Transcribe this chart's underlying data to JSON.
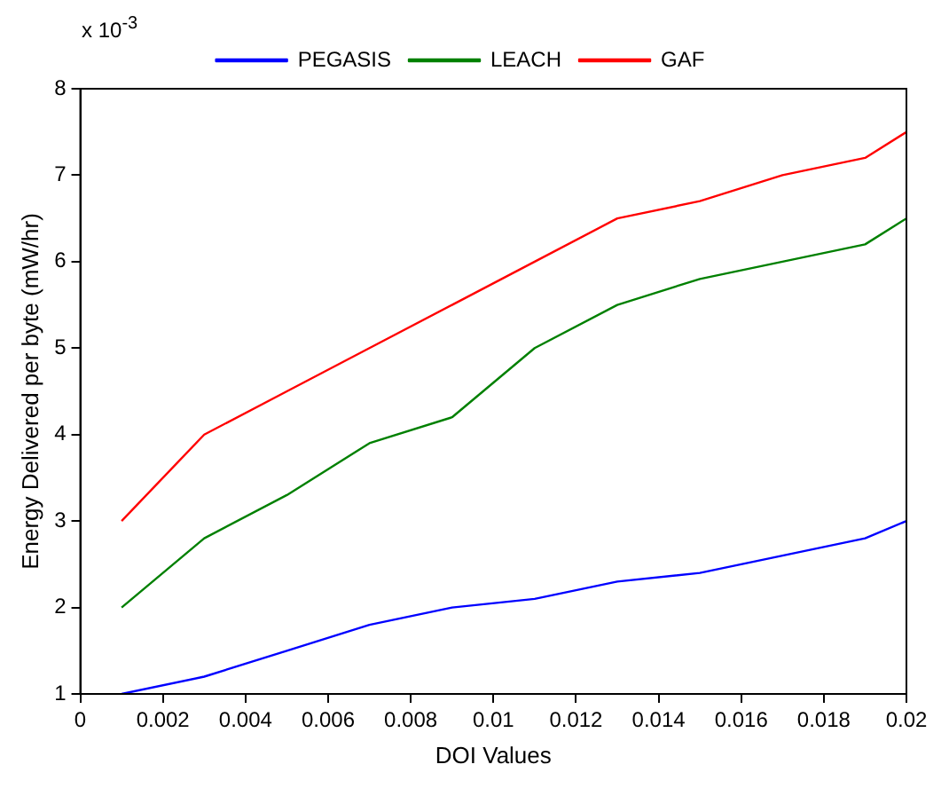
{
  "chart_data": {
    "type": "line",
    "xlabel": "DOI Values",
    "ylabel": "Energy Delivered per byte (mW/hr)",
    "annotations": [
      "x 10$^{-3}$"
    ],
    "x": [
      0.001,
      0.003,
      0.005,
      0.007,
      0.009,
      0.011,
      0.013,
      0.015,
      0.017,
      0.019,
      0.02
    ],
    "series": [
      {
        "name": "PEGASIS",
        "color": "#0000ff",
        "values": [
          1,
          1.2,
          1.5,
          1.8,
          2,
          2.1,
          2.3,
          2.4,
          2.6,
          2.8,
          3
        ]
      },
      {
        "name": "LEACH",
        "color": "#008000",
        "values": [
          2,
          2.8,
          3.3,
          3.9,
          4.2,
          5,
          5.5,
          5.8,
          6,
          6.2,
          6.5
        ]
      },
      {
        "name": "GAF",
        "color": "#ff0000",
        "values": [
          3,
          4,
          4.5,
          5,
          5.5,
          6,
          6.5,
          6.7,
          7,
          7.2,
          7.5
        ]
      }
    ],
    "xlim": [
      0,
      0.02
    ],
    "xticks": [
      0,
      0.002,
      0.004,
      0.006,
      0.008,
      0.01,
      0.012,
      0.014,
      0.016,
      0.018,
      0.02
    ],
    "ylim": [
      1,
      8
    ],
    "yticks": [
      1,
      2,
      3,
      4,
      5,
      6,
      7,
      8
    ],
    "legend": "top",
    "grid": false,
    "marker": "none",
    "line_style": "solid"
  }
}
